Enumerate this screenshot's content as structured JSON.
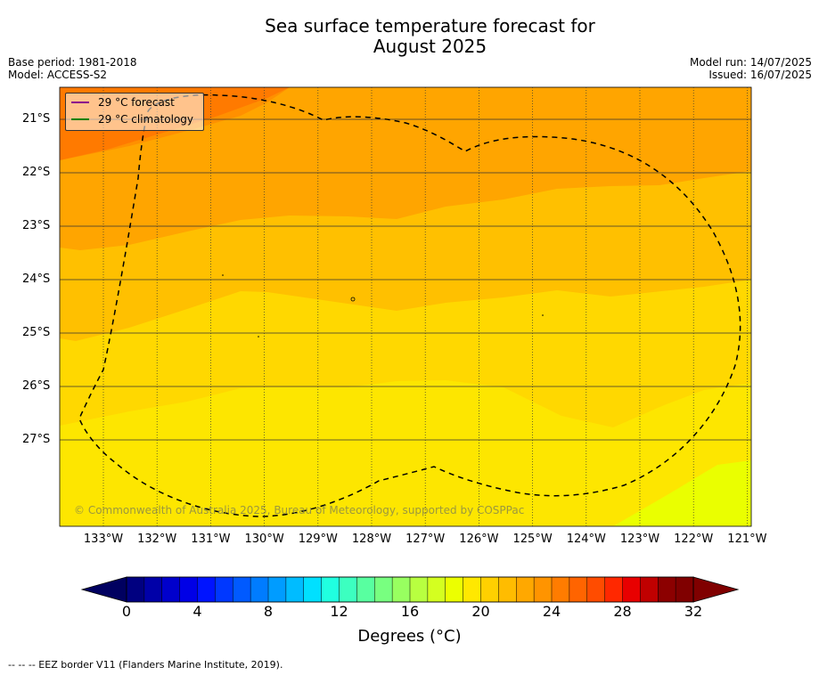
{
  "title_line1": "Sea surface temperature forecast for",
  "title_line2": "August 2025",
  "meta": {
    "base_period": "Base period: 1981-2018",
    "model": "Model: ACCESS-S2",
    "model_run": "Model run: 14/07/2025",
    "issued": "Issued: 16/07/2025"
  },
  "legend": {
    "forecast": "29 °C  forecast",
    "forecast_color": "#8b008b",
    "climatology": "29 °C  climatology",
    "climatology_color": "#008000"
  },
  "latitude_labels": [
    "21°S",
    "22°S",
    "23°S",
    "24°S",
    "25°S",
    "26°S",
    "27°S"
  ],
  "longitude_labels": [
    "133°W",
    "132°W",
    "131°W",
    "130°W",
    "129°W",
    "128°W",
    "127°W",
    "126°W",
    "125°W",
    "124°W",
    "123°W",
    "122°W",
    "121°W"
  ],
  "copyright": "© Commonwealth of Australia 2025, Bureau of Meteorology, supported by COSPPac",
  "colorbar": {
    "ticks": [
      "0",
      "4",
      "8",
      "12",
      "16",
      "20",
      "24",
      "28",
      "32"
    ],
    "label": "Degrees (°C)",
    "min": 0,
    "max": 32,
    "step": 1,
    "colors": [
      "#000080",
      "#0000a8",
      "#0000cc",
      "#0000e6",
      "#0014ff",
      "#0038ff",
      "#005aff",
      "#007cff",
      "#009cff",
      "#00bcff",
      "#00e0ff",
      "#20ffe0",
      "#3cffc0",
      "#58ffa0",
      "#78ff80",
      "#98ff60",
      "#b8ff40",
      "#d4ff20",
      "#ecff00",
      "#ffe800",
      "#ffd000",
      "#ffbc00",
      "#ffa800",
      "#ff9400",
      "#ff7c00",
      "#ff6400",
      "#ff4c00",
      "#ff2800",
      "#e80000",
      "#c00000",
      "#8c0000",
      "#800000"
    ],
    "under_color": "#000060",
    "over_color": "#800000"
  },
  "footer": "-- -- -- EEZ border V11 (Flanders Marine Institute, 2019).",
  "map": {
    "band_colors": [
      "#ff7a00",
      "#ff9000",
      "#ffa500",
      "#ffc000",
      "#ffd800",
      "#fde600",
      "#eaff00"
    ]
  }
}
